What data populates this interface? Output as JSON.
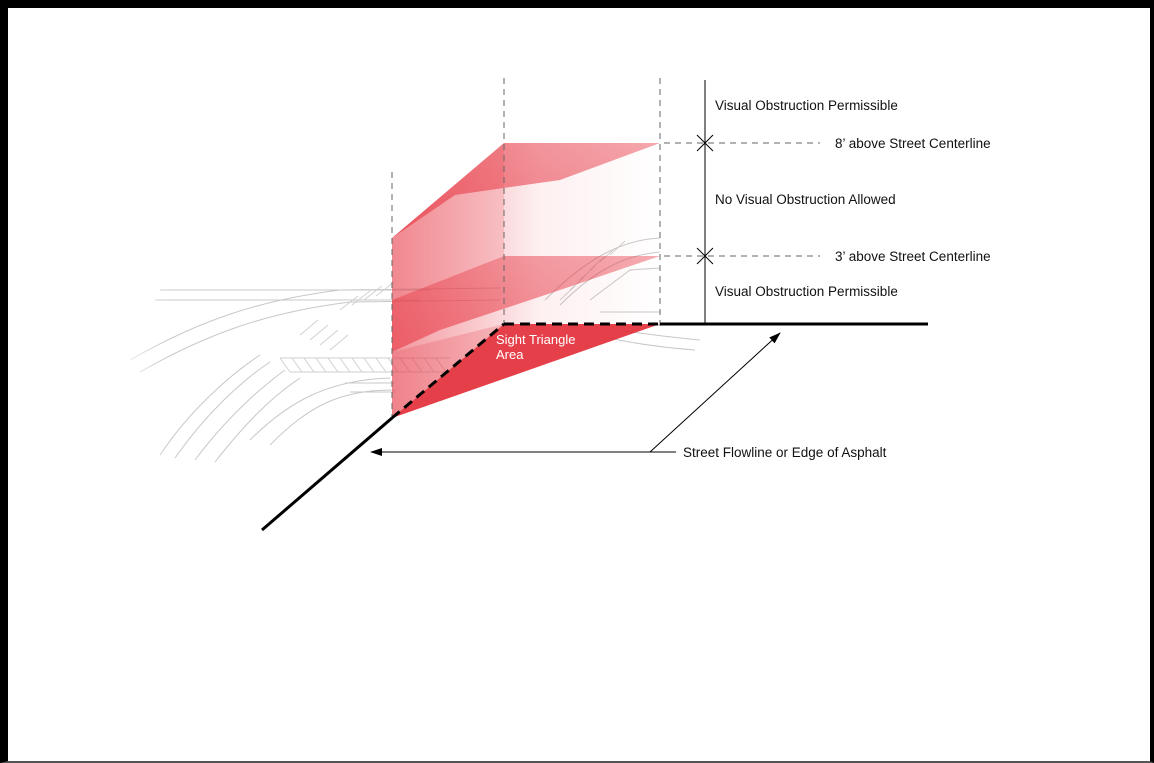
{
  "labels": {
    "visual_obstruction_permissible_top": "Visual Obstruction Permissible",
    "eight_feet_above": "8’ above Street Centerline",
    "no_visual_obstruction": "No Visual Obstruction Allowed",
    "three_feet_above": "3’ above Street Centerline",
    "visual_obstruction_permissible_bottom": "Visual Obstruction Permissible",
    "sight_triangle_line1": "Sight Triangle",
    "sight_triangle_line2": "Area",
    "street_flowline": "Street Flowline or Edge of Asphalt"
  },
  "colors": {
    "zone_red": "#e8424e",
    "triangle_red": "#e22a35",
    "line_black": "#000000"
  }
}
